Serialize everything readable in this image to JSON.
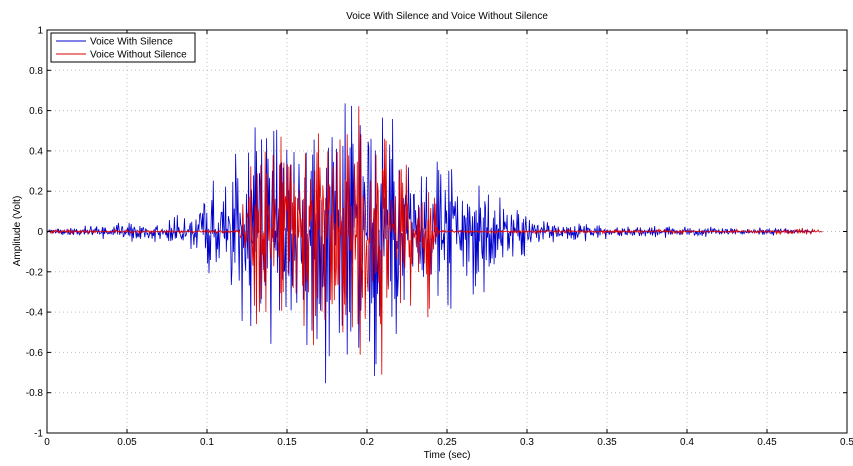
{
  "chart_data": {
    "type": "line",
    "title": "Voice With Silence and Voice Without Silence",
    "xlabel": "Time (sec)",
    "ylabel": "Amplitude (Volt)",
    "xlim": [
      0,
      0.5
    ],
    "ylim": [
      -1,
      1
    ],
    "x_ticks": [
      0,
      0.05,
      0.1,
      0.15,
      0.2,
      0.25,
      0.3,
      0.35,
      0.4,
      0.45,
      0.5
    ],
    "x_tick_labels": [
      "0",
      "0.05",
      "0.1",
      "0.15",
      "0.2",
      "0.25",
      "0.3",
      "0.35",
      "0.4",
      "0.45",
      "0.5"
    ],
    "y_ticks": [
      -1,
      -0.8,
      -0.6,
      -0.4,
      -0.2,
      0,
      0.2,
      0.4,
      0.6,
      0.8,
      1
    ],
    "y_tick_labels": [
      "-1",
      "-0.8",
      "-0.6",
      "-0.4",
      "-0.2",
      "0",
      "0.2",
      "0.4",
      "0.6",
      "0.8",
      "1"
    ],
    "grid": true,
    "legend": "top-left",
    "series": [
      {
        "name": "Voice With Silence",
        "color": "#0000cc",
        "x": [
          0,
          0.01,
          0.02,
          0.03,
          0.04,
          0.05,
          0.06,
          0.07,
          0.08,
          0.09,
          0.095,
          0.1,
          0.105,
          0.11,
          0.115,
          0.12,
          0.125,
          0.13,
          0.135,
          0.14,
          0.145,
          0.15,
          0.155,
          0.16,
          0.165,
          0.17,
          0.175,
          0.18,
          0.185,
          0.19,
          0.195,
          0.2,
          0.205,
          0.21,
          0.215,
          0.22,
          0.225,
          0.23,
          0.235,
          0.24,
          0.245,
          0.25,
          0.255,
          0.26,
          0.265,
          0.27,
          0.275,
          0.28,
          0.285,
          0.29,
          0.295,
          0.3,
          0.305,
          0.31,
          0.315,
          0.32,
          0.33,
          0.34,
          0.35,
          0.36,
          0.37,
          0.38,
          0.39,
          0.4,
          0.41,
          0.42,
          0.43,
          0.44,
          0.45,
          0.46,
          0.47,
          0.48
        ],
        "envelope": [
          0.01,
          0.02,
          0.04,
          0.04,
          0.05,
          0.06,
          0.07,
          0.08,
          0.09,
          0.11,
          0.18,
          0.25,
          0.3,
          0.37,
          0.44,
          0.47,
          0.5,
          0.55,
          0.6,
          0.62,
          0.68,
          0.72,
          0.7,
          0.75,
          0.8,
          0.82,
          0.83,
          0.85,
          0.85,
          0.85,
          0.87,
          0.87,
          0.85,
          0.82,
          0.7,
          0.6,
          0.5,
          0.45,
          0.45,
          0.45,
          0.45,
          0.48,
          0.46,
          0.44,
          0.42,
          0.4,
          0.35,
          0.3,
          0.25,
          0.2,
          0.15,
          0.14,
          0.1,
          0.08,
          0.07,
          0.06,
          0.05,
          0.05,
          0.04,
          0.04,
          0.04,
          0.04,
          0.04,
          0.04,
          0.03,
          0.03,
          0.03,
          0.03,
          0.02,
          0.02,
          0.01,
          0.01
        ]
      },
      {
        "name": "Voice Without Silence",
        "color": "#dd0000",
        "x": [
          0,
          0.01,
          0.02,
          0.03,
          0.04,
          0.05,
          0.06,
          0.07,
          0.08,
          0.09,
          0.1,
          0.105,
          0.11,
          0.115,
          0.12,
          0.125,
          0.13,
          0.135,
          0.14,
          0.145,
          0.15,
          0.155,
          0.16,
          0.165,
          0.17,
          0.175,
          0.18,
          0.185,
          0.19,
          0.195,
          0.2,
          0.205,
          0.21,
          0.215,
          0.22,
          0.225,
          0.23,
          0.235,
          0.24,
          0.245,
          0.25,
          0.26,
          0.27,
          0.28,
          0.29,
          0.3,
          0.31,
          0.32,
          0.33,
          0.34,
          0.35,
          0.36,
          0.37,
          0.38,
          0.39,
          0.4,
          0.41,
          0.42,
          0.43,
          0.44,
          0.45,
          0.46,
          0.47,
          0.48,
          0.485
        ],
        "envelope": [
          0.01,
          0.01,
          0.01,
          0.01,
          0.01,
          0.01,
          0.01,
          0.01,
          0.01,
          0.01,
          0.01,
          0.01,
          0.01,
          0.01,
          0.01,
          0.3,
          0.55,
          0.6,
          0.62,
          0.65,
          0.72,
          0.6,
          0.65,
          0.7,
          0.78,
          0.8,
          0.7,
          0.85,
          0.82,
          0.78,
          0.85,
          0.89,
          0.85,
          0.7,
          0.6,
          0.5,
          0.45,
          0.42,
          0.45,
          0.01,
          0.01,
          0.01,
          0.01,
          0.01,
          0.01,
          0.01,
          0.01,
          0.01,
          0.01,
          0.01,
          0.01,
          0.01,
          0.01,
          0.01,
          0.01,
          0.01,
          0.01,
          0.01,
          0.01,
          0.01,
          0.01,
          0.015,
          0.02,
          0.02,
          0.01
        ]
      }
    ]
  }
}
